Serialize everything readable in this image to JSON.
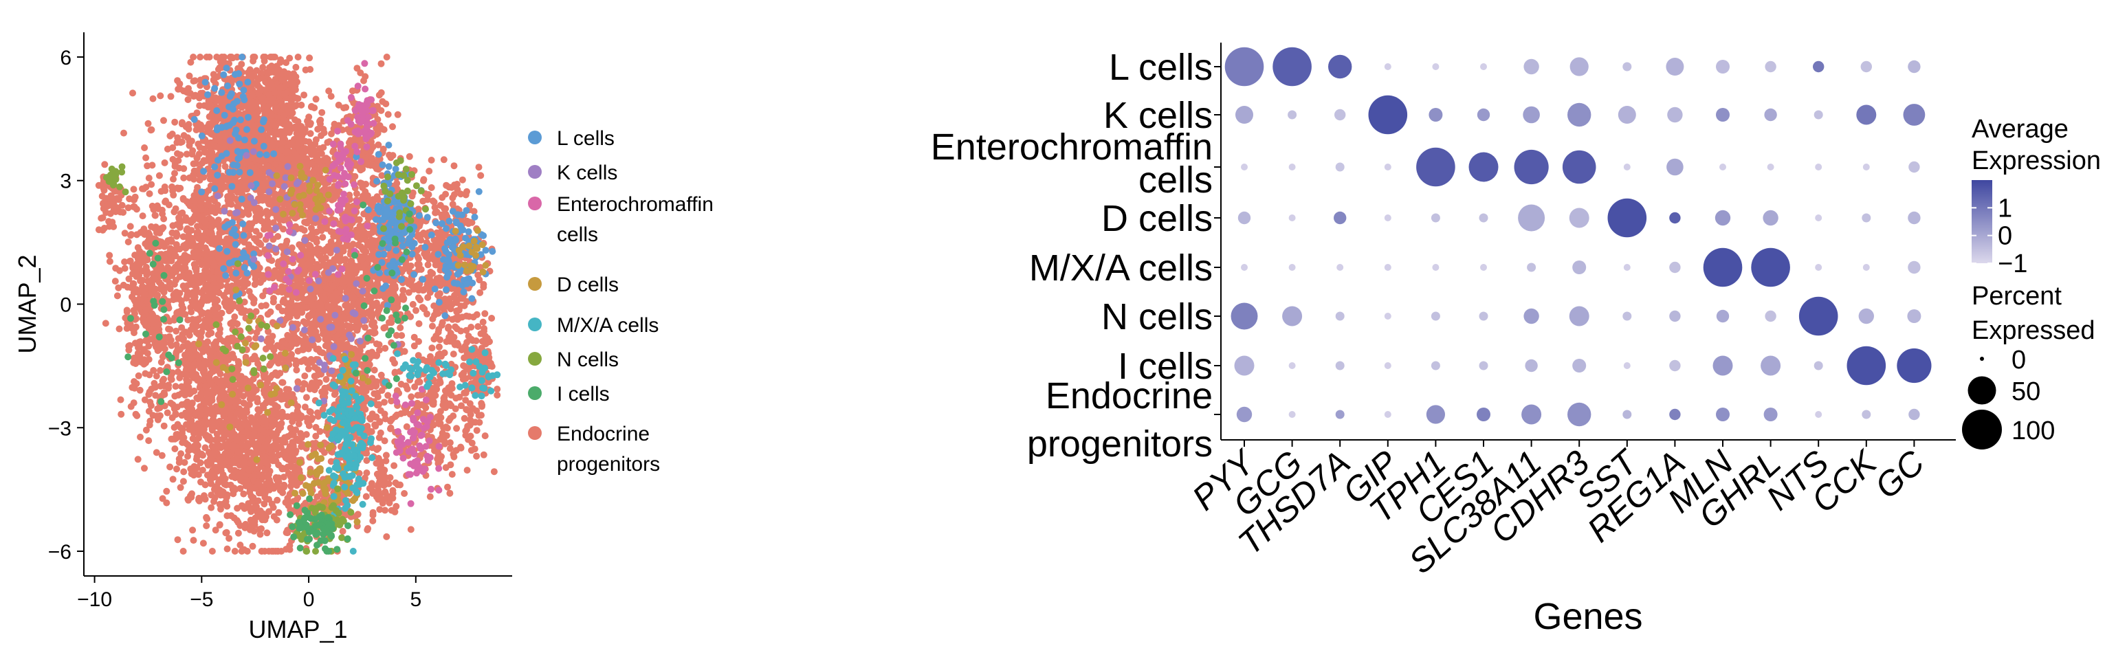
{
  "chart_data": [
    {
      "type": "scatter",
      "xlabel": "UMAP_1",
      "ylabel": "UMAP_2",
      "xlim": [
        -10.5,
        9.5
      ],
      "ylim": [
        -6.6,
        6.6
      ],
      "x_ticks": [
        -10,
        -5,
        0,
        5
      ],
      "y_ticks": [
        6,
        3,
        0,
        -3,
        -6
      ],
      "x_tick_labels": [
        "−10",
        "−5",
        "0",
        "5"
      ],
      "y_tick_labels": [
        "6",
        "3",
        "0",
        "−3",
        "−6"
      ],
      "legend_position": "right",
      "legend": [
        {
          "label_lines": [
            "L cells"
          ],
          "color": "#5b9bd5"
        },
        {
          "label_lines": [
            "K cells"
          ],
          "color": "#9f7fc4"
        },
        {
          "label_lines": [
            "Enterochromaffin",
            "cells"
          ],
          "color": "#d967a8"
        },
        {
          "label_lines": [
            "D cells"
          ],
          "color": "#c69a3e"
        },
        {
          "label_lines": [
            "M/X/A cells"
          ],
          "color": "#45b5c4"
        },
        {
          "label_lines": [
            "N cells"
          ],
          "color": "#86a83f"
        },
        {
          "label_lines": [
            "I cells"
          ],
          "color": "#4bab6a"
        },
        {
          "label_lines": [
            "Endocrine",
            "progenitors"
          ],
          "color": "#e57a6b"
        }
      ],
      "series": [
        {
          "color": "#5b9bd5",
          "clusters": [
            [
              4.0,
              2.0,
              0.7,
              1.0,
              140
            ],
            [
              7.0,
              1.3,
              0.8,
              0.7,
              90
            ],
            [
              -3.5,
              4.2,
              1.0,
              1.2,
              70
            ],
            [
              -3.5,
              1.2,
              0.6,
              0.6,
              30
            ]
          ]
        },
        {
          "color": "#9f7fc4",
          "clusters": [
            [
              1.0,
              -0.5,
              1.5,
              1.5,
              40
            ],
            [
              -2.0,
              2.5,
              1.5,
              1.5,
              30
            ]
          ]
        },
        {
          "color": "#d967a8",
          "clusters": [
            [
              1.5,
              2.8,
              0.5,
              1.2,
              60
            ],
            [
              2.5,
              4.5,
              0.4,
              0.5,
              50
            ],
            [
              5.0,
              -3.5,
              0.6,
              0.8,
              60
            ],
            [
              -1.0,
              1.0,
              0.8,
              0.8,
              20
            ]
          ]
        },
        {
          "color": "#c69a3e",
          "clusters": [
            [
              1.0,
              -4.3,
              1.0,
              0.8,
              80
            ],
            [
              2.0,
              -1.8,
              0.4,
              0.4,
              25
            ],
            [
              0.0,
              2.7,
              1.0,
              0.4,
              30
            ],
            [
              7.5,
              1.2,
              0.6,
              0.6,
              20
            ],
            [
              -3.0,
              -1.5,
              1.2,
              1.0,
              25
            ]
          ]
        },
        {
          "color": "#45b5c4",
          "clusters": [
            [
              1.8,
              -3.2,
              0.6,
              1.2,
              150
            ],
            [
              5.5,
              -1.7,
              0.9,
              0.3,
              30
            ],
            [
              8.0,
              -1.8,
              0.5,
              0.5,
              20
            ]
          ]
        },
        {
          "color": "#86a83f",
          "clusters": [
            [
              0.8,
              -5.3,
              0.9,
              0.4,
              60
            ],
            [
              4.5,
              2.5,
              0.8,
              0.5,
              30
            ],
            [
              -9.0,
              3.0,
              0.4,
              0.3,
              15
            ],
            [
              -3.0,
              -1.0,
              1.0,
              0.8,
              20
            ]
          ]
        },
        {
          "color": "#4bab6a",
          "clusters": [
            [
              0.3,
              -5.5,
              0.9,
              0.4,
              60
            ],
            [
              3.5,
              0.0,
              1.2,
              1.5,
              30
            ],
            [
              -7.0,
              0.0,
              0.7,
              1.5,
              20
            ]
          ]
        },
        {
          "color": "#e57a6b",
          "clusters": [
            [
              -3.0,
              4.0,
              2.0,
              1.3,
              1200
            ],
            [
              -4.5,
              1.0,
              2.0,
              1.3,
              700
            ],
            [
              -0.5,
              3.0,
              1.3,
              1.0,
              450
            ],
            [
              0.8,
              0.0,
              1.8,
              1.3,
              800
            ],
            [
              -2.5,
              -3.5,
              2.0,
              1.5,
              900
            ],
            [
              -5.0,
              -2.0,
              1.5,
              1.5,
              500
            ],
            [
              -7.5,
              0.0,
              0.8,
              1.8,
              350
            ],
            [
              -9.3,
              2.5,
              0.4,
              0.5,
              60
            ],
            [
              2.2,
              -2.5,
              1.0,
              1.2,
              300
            ],
            [
              3.5,
              1.5,
              1.3,
              1.2,
              500
            ],
            [
              2.5,
              4.0,
              0.8,
              0.9,
              200
            ],
            [
              6.5,
              1.0,
              1.0,
              1.3,
              350
            ],
            [
              6.0,
              -2.5,
              1.5,
              1.2,
              300
            ],
            [
              8.0,
              -1.5,
              0.5,
              0.7,
              100
            ],
            [
              0.8,
              -5.0,
              0.7,
              0.5,
              150
            ],
            [
              -1.5,
              5.3,
              0.6,
              0.4,
              100
            ],
            [
              3.5,
              -4.5,
              0.6,
              0.6,
              60
            ]
          ]
        }
      ]
    },
    {
      "type": "dot",
      "xlabel": "Genes",
      "ylabel": "",
      "categories_x": [
        "PYY",
        "GCG",
        "THSD7A",
        "GIP",
        "TPH1",
        "CES1",
        "SLC38A11",
        "CDHR3",
        "SST",
        "REG1A",
        "MLN",
        "GHRL",
        "NTS",
        "CCK",
        "GC"
      ],
      "categories_y": [
        {
          "label_lines": [
            "L cells"
          ]
        },
        {
          "label_lines": [
            "K cells"
          ]
        },
        {
          "label_lines": [
            "Enterochromaffin",
            "cells"
          ]
        },
        {
          "label_lines": [
            "D cells"
          ]
        },
        {
          "label_lines": [
            "M/X/A cells"
          ]
        },
        {
          "label_lines": [
            "N cells"
          ]
        },
        {
          "label_lines": [
            "I cells"
          ]
        },
        {
          "label_lines": [
            "Endocrine",
            "progenitors"
          ]
        }
      ],
      "pct_expressed": [
        [
          95,
          95,
          35,
          3,
          3,
          3,
          15,
          22,
          5,
          20,
          12,
          8,
          8,
          8,
          10
        ],
        [
          20,
          5,
          8,
          95,
          12,
          10,
          18,
          35,
          20,
          15,
          12,
          10,
          5,
          25,
          30
        ],
        [
          3,
          3,
          5,
          3,
          95,
          55,
          75,
          70,
          3,
          18,
          3,
          3,
          3,
          3,
          8
        ],
        [
          10,
          3,
          10,
          3,
          5,
          5,
          45,
          25,
          95,
          8,
          15,
          15,
          3,
          5,
          10
        ],
        [
          3,
          3,
          3,
          3,
          3,
          3,
          5,
          12,
          3,
          8,
          95,
          95,
          3,
          3,
          10
        ],
        [
          45,
          25,
          5,
          3,
          5,
          5,
          15,
          25,
          5,
          8,
          10,
          8,
          95,
          15,
          12
        ],
        [
          25,
          3,
          5,
          3,
          5,
          5,
          10,
          12,
          3,
          8,
          25,
          25,
          5,
          95,
          75
        ],
        [
          15,
          3,
          5,
          3,
          22,
          12,
          25,
          35,
          5,
          8,
          12,
          12,
          3,
          5,
          8
        ]
      ],
      "avg_expression": [
        [
          0.9,
          1.5,
          1.5,
          -0.8,
          -0.8,
          -0.8,
          -0.3,
          -0.2,
          -0.5,
          -0.2,
          -0.4,
          -0.5,
          1.0,
          -0.5,
          -0.3
        ],
        [
          0.0,
          -0.5,
          -0.5,
          1.8,
          0.5,
          0.3,
          0.2,
          0.5,
          -0.2,
          -0.3,
          0.5,
          0.0,
          -0.5,
          1.0,
          0.8
        ],
        [
          -0.8,
          -0.8,
          -0.6,
          -0.8,
          1.6,
          1.6,
          1.6,
          1.6,
          -0.8,
          0.0,
          -0.8,
          -0.8,
          -0.8,
          -0.8,
          -0.5
        ],
        [
          -0.3,
          -0.8,
          0.7,
          -0.8,
          -0.5,
          -0.5,
          -0.1,
          -0.3,
          1.8,
          1.5,
          0.3,
          0.0,
          -0.8,
          -0.5,
          -0.3
        ],
        [
          -0.8,
          -0.8,
          -0.8,
          -0.8,
          -0.8,
          -0.8,
          -0.5,
          -0.3,
          -0.8,
          -0.5,
          1.8,
          1.8,
          -0.8,
          -0.8,
          -0.5
        ],
        [
          0.8,
          0.0,
          -0.5,
          -0.8,
          -0.5,
          -0.5,
          0.2,
          0.0,
          -0.5,
          -0.3,
          0.0,
          -0.5,
          1.8,
          -0.2,
          -0.3
        ],
        [
          -0.2,
          -0.8,
          -0.5,
          -0.8,
          -0.5,
          -0.5,
          -0.3,
          -0.3,
          -0.8,
          -0.5,
          0.3,
          0.0,
          -0.5,
          1.8,
          1.8
        ],
        [
          0.3,
          -0.8,
          0.2,
          -0.8,
          0.5,
          0.8,
          0.5,
          0.5,
          -0.3,
          0.8,
          0.5,
          0.3,
          -0.8,
          -0.5,
          -0.3
        ]
      ],
      "color_scale": {
        "low": "#dcd8ec",
        "high": "#3f47a0",
        "min": -1,
        "max": 2
      },
      "legend_color": {
        "title_lines": [
          "Average",
          "Expression"
        ],
        "ticks": [
          1,
          0,
          -1
        ],
        "tick_labels": [
          "1",
          "0",
          "−1"
        ]
      },
      "legend_size": {
        "title_lines": [
          "Percent",
          "Expressed"
        ],
        "values": [
          0,
          50,
          100
        ],
        "labels": [
          "0",
          "50",
          "100"
        ]
      }
    }
  ]
}
